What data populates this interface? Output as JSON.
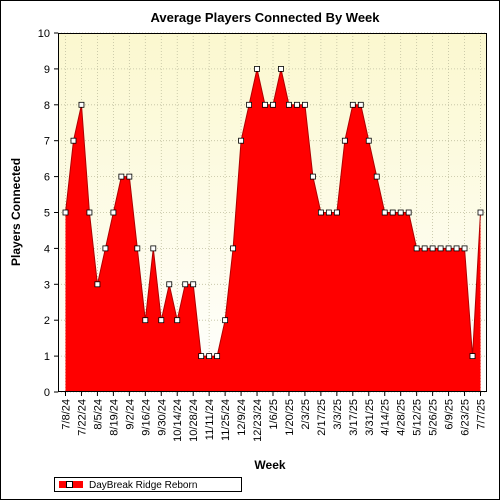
{
  "colors": {
    "fill": "#ff0000",
    "fill_dark": "#b00000",
    "stroke": "#7a0000",
    "plot_bg_top": "#fbf8cf",
    "plot_bg_bottom": "#ffffff",
    "grid": "#c0c0a0",
    "frame": "#000000",
    "marker_fill": "#ffffff",
    "marker_stroke": "#000000"
  },
  "chart_data": {
    "type": "area",
    "title": "Average Players Connected By Week",
    "xlabel": "Week",
    "ylabel": "Players Connected",
    "ylim": [
      0,
      10
    ],
    "yticks": [
      0,
      1,
      2,
      3,
      4,
      5,
      6,
      7,
      8,
      9,
      10
    ],
    "grid": true,
    "legend_position": "bottom-left",
    "x_tick_labels": [
      {
        "index": 0,
        "label": "7/8/24"
      },
      {
        "index": 2,
        "label": "7/22/24"
      },
      {
        "index": 4,
        "label": "8/5/24"
      },
      {
        "index": 6,
        "label": "8/19/24"
      },
      {
        "index": 8,
        "label": "9/2/24"
      },
      {
        "index": 10,
        "label": "9/16/24"
      },
      {
        "index": 12,
        "label": "9/30/24"
      },
      {
        "index": 14,
        "label": "10/14/24"
      },
      {
        "index": 16,
        "label": "10/28/24"
      },
      {
        "index": 18,
        "label": "11/11/24"
      },
      {
        "index": 20,
        "label": "11/25/24"
      },
      {
        "index": 22,
        "label": "12/9/24"
      },
      {
        "index": 24,
        "label": "12/23/24"
      },
      {
        "index": 26,
        "label": "1/6/25"
      },
      {
        "index": 28,
        "label": "1/20/25"
      },
      {
        "index": 30,
        "label": "2/3/25"
      },
      {
        "index": 32,
        "label": "2/17/25"
      },
      {
        "index": 34,
        "label": "3/3/25"
      },
      {
        "index": 36,
        "label": "3/17/25"
      },
      {
        "index": 38,
        "label": "3/31/25"
      },
      {
        "index": 40,
        "label": "4/14/25"
      },
      {
        "index": 42,
        "label": "4/28/25"
      },
      {
        "index": 44,
        "label": "5/12/25"
      },
      {
        "index": 46,
        "label": "5/26/25"
      },
      {
        "index": 48,
        "label": "6/9/25"
      },
      {
        "index": 50,
        "label": "6/23/25"
      },
      {
        "index": 52,
        "label": "7/7/25"
      }
    ],
    "series": [
      {
        "name": "DayBreak Ridge Reborn",
        "values": [
          5,
          7,
          8,
          5,
          3,
          4,
          5,
          6,
          6,
          4,
          2,
          4,
          2,
          3,
          2,
          3,
          3,
          1,
          1,
          1,
          2,
          4,
          7,
          8,
          9,
          8,
          8,
          9,
          8,
          8,
          8,
          6,
          5,
          5,
          5,
          7,
          8,
          8,
          7,
          6,
          5,
          5,
          5,
          5,
          4,
          4,
          4,
          4,
          4,
          4,
          4,
          1,
          5
        ]
      }
    ]
  }
}
